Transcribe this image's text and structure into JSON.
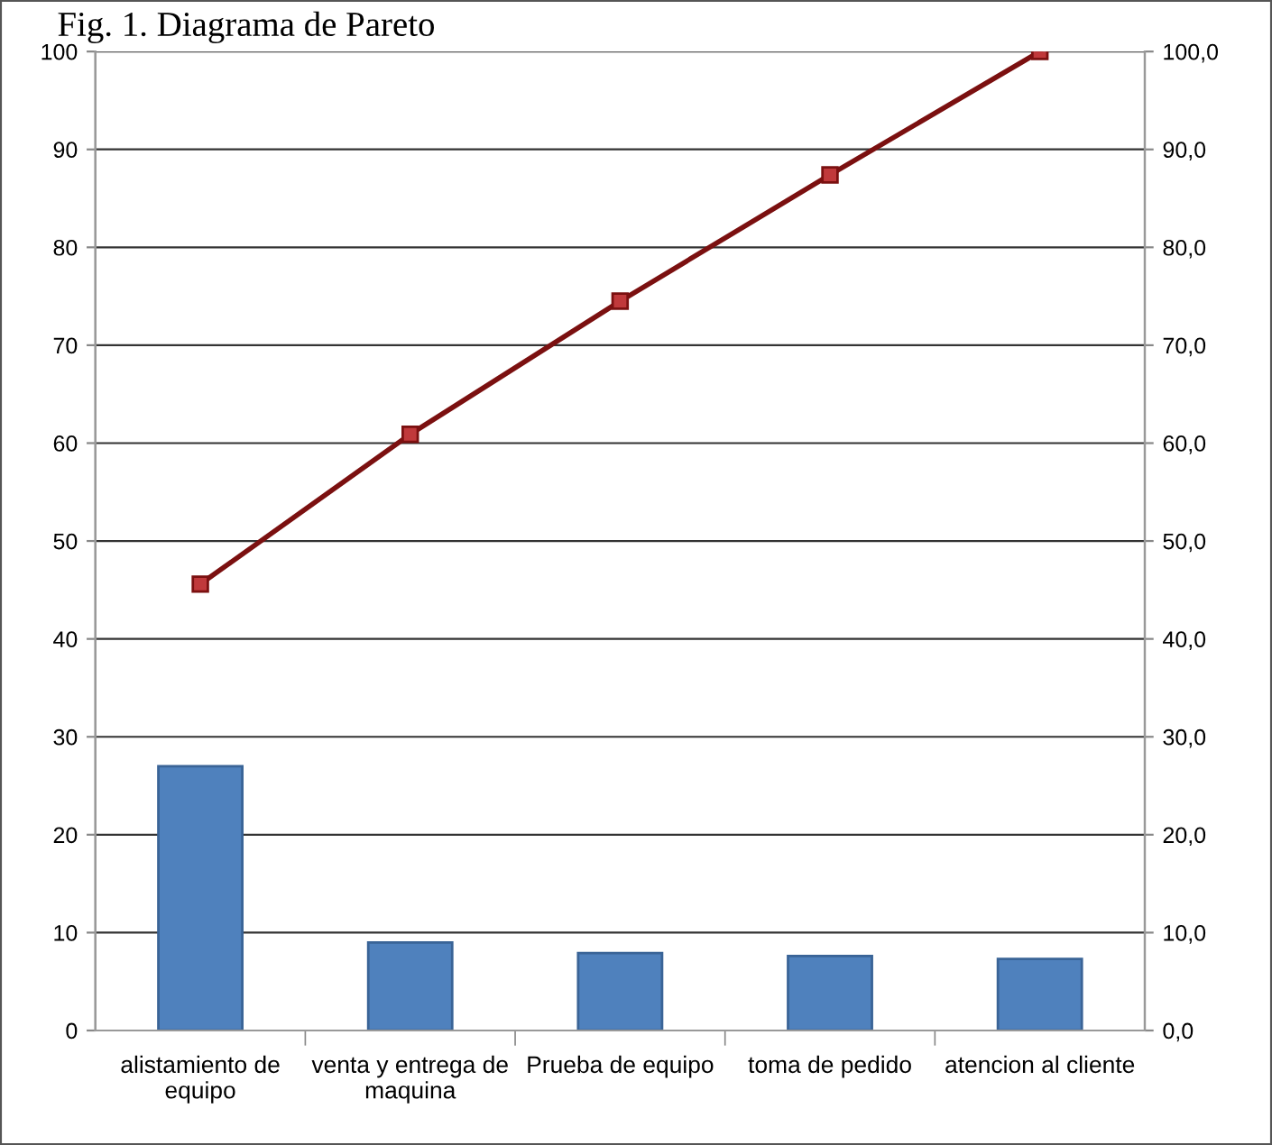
{
  "chart_data": {
    "type": "bar",
    "title": "Fig. 1. Diagrama de Pareto",
    "categories": [
      "alistamiento de\nequipo",
      "venta y entrega de\nmaquina",
      "Prueba de equipo",
      "toma de pedido",
      "atencion al cliente"
    ],
    "series": [
      {
        "color": "#4f81bd",
        "values": [
          27,
          9.0,
          7.9,
          7.6,
          7.3
        ]
      },
      {
        "type": "line",
        "axis": "y2",
        "color": "#7b1010",
        "marker": "square",
        "values": [
          45.6,
          60.9,
          74.5,
          87.4,
          100
        ]
      }
    ],
    "ylim": [
      0,
      100
    ],
    "yticks": [
      0,
      10,
      20,
      30,
      40,
      50,
      60,
      70,
      80,
      90,
      100
    ],
    "y2lim": [
      0,
      100
    ],
    "y2ticks": [
      {
        "value": 0,
        "label": "0,0"
      },
      {
        "value": 10,
        "label": "10,0"
      },
      {
        "value": 20,
        "label": "20,0"
      },
      {
        "value": 30,
        "label": "30,0"
      },
      {
        "value": 40,
        "label": "40,0"
      },
      {
        "value": 50,
        "label": "50,0"
      },
      {
        "value": 60,
        "label": "60,0"
      },
      {
        "value": 70,
        "label": "70,0"
      },
      {
        "value": 80,
        "label": "80,0"
      },
      {
        "value": 90,
        "label": "90,0"
      },
      {
        "value": 100,
        "label": "100,0"
      }
    ],
    "grid": "y"
  }
}
